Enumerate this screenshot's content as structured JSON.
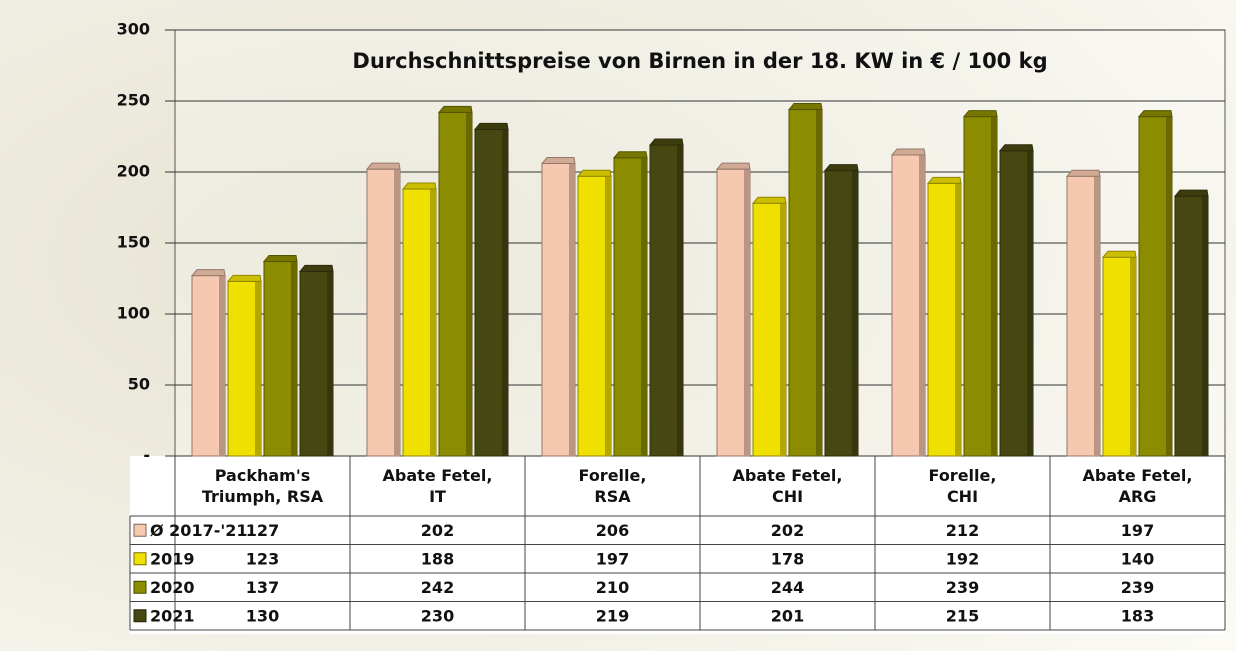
{
  "chart_data": {
    "type": "bar",
    "title": "Durchschnittspreise von Birnen in der 18. KW in € / 100 kg",
    "categories": [
      "Packham's\nTriumph, RSA",
      "Abate Fetel,\nIT",
      "Forelle,\nRSA",
      "Abate Fetel,\nCHI",
      "Forelle,\nCHI",
      "Abate Fetel,\nARG"
    ],
    "series": [
      {
        "name": "Ø 2017-'21",
        "color": "#f6c8b0",
        "values": [
          127,
          202,
          206,
          202,
          212,
          197
        ]
      },
      {
        "name": "2019",
        "color": "#f0e000",
        "values": [
          123,
          188,
          197,
          178,
          192,
          140
        ]
      },
      {
        "name": "2020",
        "color": "#8c8c00",
        "values": [
          137,
          242,
          210,
          244,
          239,
          239
        ]
      },
      {
        "name": "2021",
        "color": "#474712",
        "values": [
          130,
          230,
          219,
          201,
          215,
          183
        ]
      }
    ],
    "ylim": [
      0,
      300
    ],
    "yticks": [
      {
        "value": 0,
        "label": "-"
      },
      50,
      100,
      150,
      200,
      250,
      300
    ],
    "grid": true
  }
}
